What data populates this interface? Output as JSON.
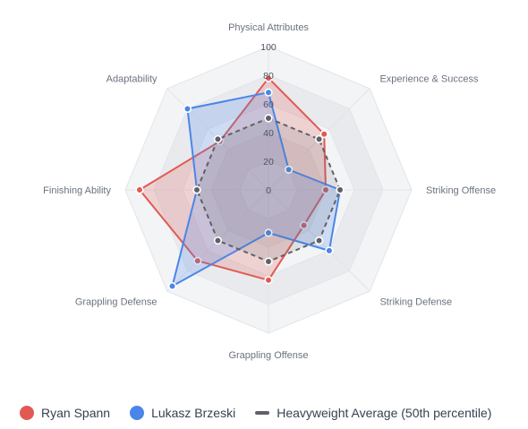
{
  "chart_data": {
    "type": "radar",
    "title": "",
    "axes": [
      "Physical Attributes",
      "Experience & Success",
      "Striking Offense",
      "Striking Defense",
      "Grappling Offense",
      "Grappling Defense",
      "Finishing Ability",
      "Adaptability"
    ],
    "rlim": [
      0,
      100
    ],
    "ticks": [
      0,
      20,
      40,
      60,
      80,
      100
    ],
    "grid": true,
    "legend_position": "bottom-left",
    "series": [
      {
        "name": "Ryan Spann",
        "color": "#e05a53",
        "fill": "rgba(224,90,83,0.22)",
        "style": "solid",
        "values": [
          78,
          55,
          40,
          35,
          63,
          70,
          90,
          48
        ]
      },
      {
        "name": "Lukasz Brzeski",
        "color": "#4a86e8",
        "fill": "rgba(74,134,232,0.22)",
        "style": "solid",
        "values": [
          68,
          20,
          50,
          60,
          30,
          95,
          50,
          80
        ]
      },
      {
        "name": "Heavyweight Average (50th percentile)",
        "color": "#5f6069",
        "fill": "rgba(95,96,105,0.14)",
        "style": "dashed",
        "values": [
          50,
          50,
          50,
          50,
          50,
          50,
          50,
          50
        ]
      }
    ]
  }
}
